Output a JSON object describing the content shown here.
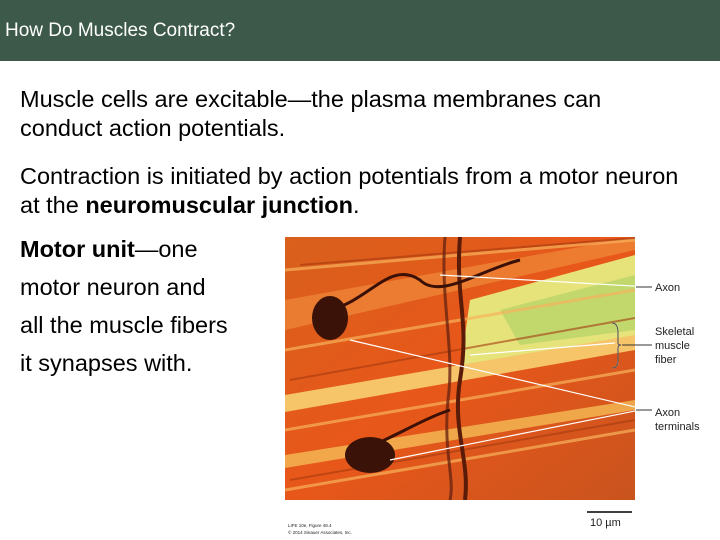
{
  "header": {
    "title": "How Do Muscles Contract?"
  },
  "body": {
    "paragraphs": [
      {
        "runs": [
          {
            "text": "Muscle cells are excitable—the plasma membranes can conduct action potentials.",
            "bold": false
          }
        ]
      },
      {
        "runs": [
          {
            "text": "Contraction is initiated by action potentials from a motor neuron at the ",
            "bold": false
          },
          {
            "text": "neuromuscular junction",
            "bold": true
          },
          {
            "text": ".",
            "bold": false
          }
        ]
      }
    ],
    "definition": {
      "term": "Motor unit",
      "lines": [
        "—one",
        "motor neuron and",
        "all the muscle fibers",
        "it synapses with."
      ]
    }
  },
  "figure": {
    "labels": {
      "axon": "Axon",
      "fiber": [
        "Skeletal",
        "muscle",
        "fiber"
      ],
      "terminals": [
        "Axon",
        "terminals"
      ]
    },
    "scale_bar": "10 µm",
    "credit": [
      "LIFE 10e, Figure 48.4",
      "© 2014 Sinauer Associates, Inc."
    ]
  }
}
